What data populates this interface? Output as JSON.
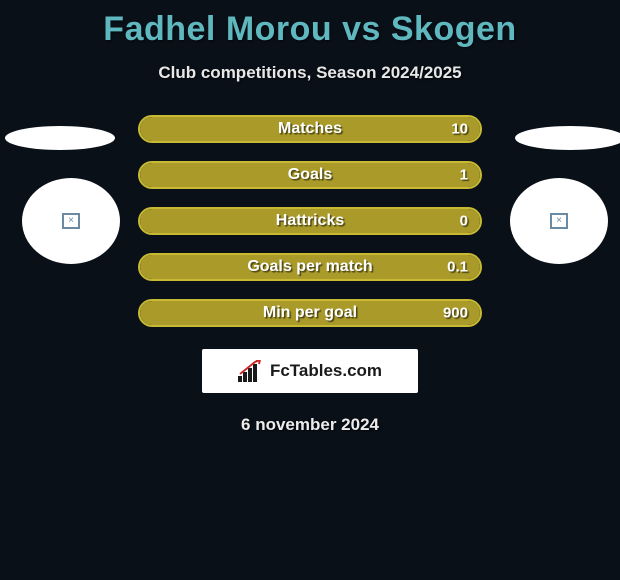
{
  "title": "Fadhel Morou vs Skogen",
  "subtitle": "Club competitions, Season 2024/2025",
  "date": "6 november 2024",
  "fctables_label": "FcTables.com",
  "colors": {
    "background": "#0a1018",
    "title": "#5fb8bf",
    "bar_fill": "#a99a2a",
    "bar_border": "#c8b932",
    "bar_empty": "#1a2128"
  },
  "bars": [
    {
      "label": "Matches",
      "value": "10",
      "fill_pct": 100
    },
    {
      "label": "Goals",
      "value": "1",
      "fill_pct": 100
    },
    {
      "label": "Hattricks",
      "value": "0",
      "fill_pct": 100
    },
    {
      "label": "Goals per match",
      "value": "0.1",
      "fill_pct": 100
    },
    {
      "label": "Min per goal",
      "value": "900",
      "fill_pct": 100
    }
  ]
}
